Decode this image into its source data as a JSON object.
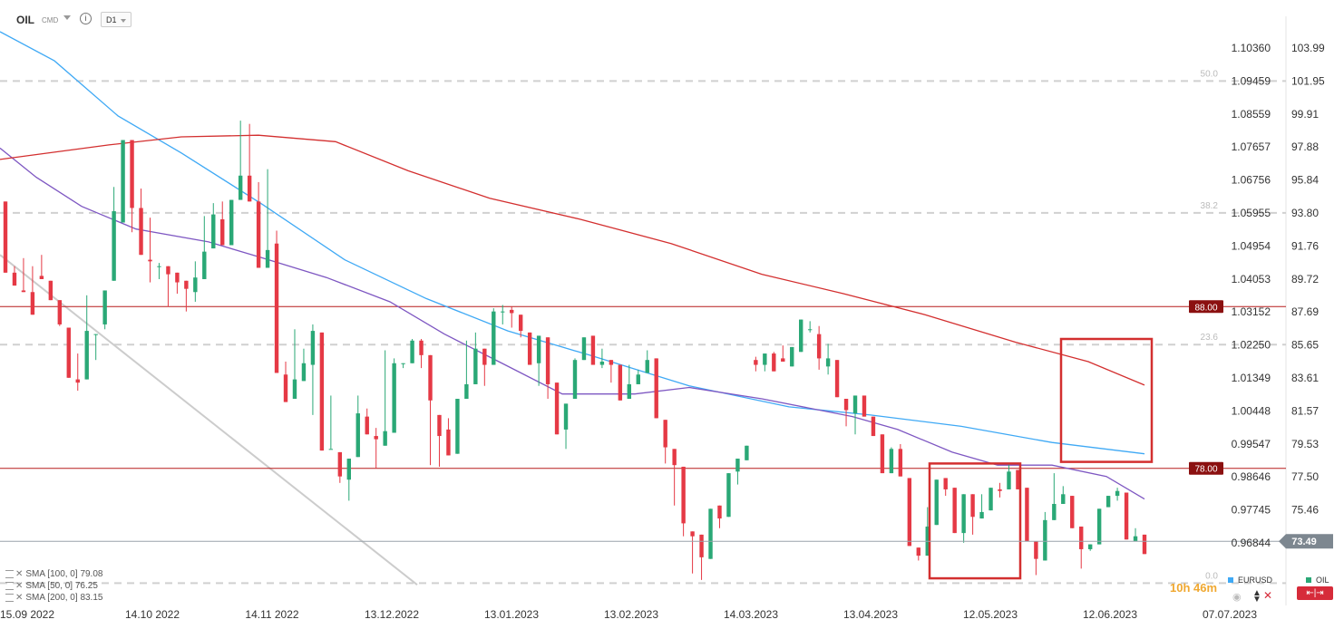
{
  "header": {
    "symbol": "OIL",
    "instrument_type": "CMD",
    "timeframe": "D1"
  },
  "chart_data": {
    "type": "candlestick",
    "instrument": "OIL",
    "interval": "D1",
    "left_axis_label": "EURUSD",
    "right_axis_label": "OIL",
    "x_ticks": [
      "15.09 2022",
      "14.10 2022",
      "14.11 2022",
      "13.12.2022",
      "13.01.2023",
      "13.02.2023",
      "14.03.2023",
      "13.04.2023",
      "12.05.2023",
      "12.06.2023",
      "07.07.2023"
    ],
    "eurusd_ticks": [
      "1.10360",
      "1.09459",
      "1.08559",
      "1.07657",
      "1.06756",
      "1.05955",
      "1.04954",
      "1.04053",
      "1.03152",
      "1.02250",
      "1.01349",
      "1.00448",
      "0.99547",
      "0.98646",
      "0.97745",
      "0.96844"
    ],
    "oil_ticks": [
      "103.99",
      "101.95",
      "99.91",
      "97.88",
      "95.84",
      "93.80",
      "91.76",
      "89.72",
      "87.69",
      "85.65",
      "83.61",
      "81.57",
      "79.53",
      "77.50",
      "75.46"
    ],
    "current_price": 73.49,
    "horizontal_levels": [
      {
        "value": 88.0,
        "label": "88.00",
        "color": "#b71c1c"
      },
      {
        "value": 78.0,
        "label": "78.00",
        "color": "#b71c1c"
      }
    ],
    "fibonacci_levels": [
      {
        "label": "50.0",
        "value": 101.95
      },
      {
        "label": "38.2",
        "value": 93.8
      },
      {
        "label": "23.6",
        "value": 85.65
      },
      {
        "label": "0.0",
        "value": 70.9
      }
    ],
    "moving_averages": [
      {
        "name": "SMA [100, 0]",
        "value": 79.08,
        "color": "#3fa9f5",
        "values": [
          [
            0,
            105.0
          ],
          [
            60,
            103.2
          ],
          [
            130,
            99.8
          ],
          [
            200,
            97.5
          ],
          [
            290,
            94.3
          ],
          [
            380,
            90.9
          ],
          [
            470,
            88.5
          ],
          [
            560,
            86.5
          ],
          [
            650,
            85.0
          ],
          [
            760,
            83.1
          ],
          [
            870,
            81.8
          ],
          [
            960,
            81.3
          ],
          [
            1060,
            80.6
          ],
          [
            1160,
            79.6
          ],
          [
            1262,
            78.9
          ]
        ]
      },
      {
        "name": "SMA [50, 0]",
        "value": 76.25,
        "color": "#7e57c2",
        "values": [
          [
            0,
            97.8
          ],
          [
            40,
            96.0
          ],
          [
            90,
            94.2
          ],
          [
            150,
            92.8
          ],
          [
            230,
            92.0
          ],
          [
            290,
            91.0
          ],
          [
            360,
            89.8
          ],
          [
            430,
            88.3
          ],
          [
            490,
            86.3
          ],
          [
            550,
            84.6
          ],
          [
            620,
            82.6
          ],
          [
            700,
            82.6
          ],
          [
            760,
            83.0
          ],
          [
            840,
            82.3
          ],
          [
            940,
            81.2
          ],
          [
            990,
            80.4
          ],
          [
            1050,
            79.0
          ],
          [
            1100,
            78.2
          ],
          [
            1160,
            78.2
          ],
          [
            1220,
            77.5
          ],
          [
            1262,
            76.1
          ]
        ]
      },
      {
        "name": "SMA [200, 0]",
        "value": 83.15,
        "color": "#d32f2f",
        "values": [
          [
            0,
            97.1
          ],
          [
            120,
            98.0
          ],
          [
            200,
            98.5
          ],
          [
            285,
            98.6
          ],
          [
            370,
            98.2
          ],
          [
            450,
            96.4
          ],
          [
            540,
            94.7
          ],
          [
            640,
            93.4
          ],
          [
            740,
            91.9
          ],
          [
            840,
            90.0
          ],
          [
            930,
            88.8
          ],
          [
            1020,
            87.5
          ],
          [
            1120,
            85.8
          ],
          [
            1200,
            84.6
          ],
          [
            1262,
            83.15
          ]
        ]
      }
    ],
    "highlight_boxes": [
      {
        "x_from": 1025,
        "x_to": 1125,
        "y_high": 78.3,
        "y_low": 71.2,
        "color": "#d32f2f"
      },
      {
        "x_from": 1170,
        "x_to": 1270,
        "y_high": 86.0,
        "y_low": 78.4,
        "color": "#d32f2f"
      }
    ],
    "trendline": {
      "points": [
        [
          0,
          91.2
        ],
        [
          460,
          70.8
        ]
      ],
      "color": "#cccccc"
    },
    "candles": [
      [
        94.5,
        93.3,
        92.0,
        90.1
      ],
      [
        90.1,
        90.5,
        89.9,
        89.3
      ],
      [
        89.0,
        91.0,
        89.9,
        88.9
      ],
      [
        88.9,
        90.5,
        89.8,
        87.5
      ],
      [
        89.9,
        91.2,
        90.2,
        89.7
      ],
      [
        89.6,
        88.6,
        89.6,
        88.4
      ],
      [
        88.4,
        86.8,
        87.5,
        86.9
      ],
      [
        86.7,
        83.6,
        86.2,
        83.6
      ],
      [
        83.5,
        82.8,
        85.1,
        83.3
      ],
      [
        83.5,
        88.7,
        86.4,
        86.5
      ],
      [
        86.3,
        84.7,
        86.2,
        86.3
      ],
      [
        86.9,
        86.6,
        88.7,
        89.0
      ],
      [
        89.6,
        95.4,
        90.6,
        93.9
      ],
      [
        93.2,
        98.1,
        97.2,
        98.3
      ],
      [
        98.3,
        92.6,
        97.4,
        94.1
      ],
      [
        94.1,
        92.3,
        95.3,
        91.2
      ],
      [
        90.9,
        89.5,
        93.5,
        90.8
      ],
      [
        90.5,
        89.7,
        90.7,
        90.5
      ],
      [
        90.5,
        88.0,
        90.3,
        90.0
      ],
      [
        90.1,
        88.8,
        90.0,
        89.5
      ],
      [
        89.6,
        87.7,
        89.1,
        89.1
      ],
      [
        88.9,
        88.3,
        90.8,
        89.8
      ],
      [
        89.7,
        93.6,
        91.1,
        91.4
      ],
      [
        91.6,
        94.4,
        93.8,
        93.7
      ],
      [
        93.4,
        94.5,
        93.2,
        91.8
      ],
      [
        91.8,
        94.1,
        92.5,
        94.6
      ],
      [
        94.6,
        99.5,
        95.0,
        96.1
      ],
      [
        96.1,
        97.0,
        99.3,
        94.5
      ],
      [
        94.5,
        95.7,
        92.8,
        90.4
      ],
      [
        90.4,
        96.5,
        90.8,
        91.5
      ],
      [
        91.9,
        92.7,
        90.1,
        83.9
      ],
      [
        83.8,
        84.1,
        84.6,
        82.1
      ],
      [
        82.3,
        86.6,
        84.4,
        83.5
      ],
      [
        83.4,
        84.0,
        85.4,
        84.5
      ],
      [
        84.4,
        81.3,
        86.9,
        86.5
      ],
      [
        86.4,
        83.8,
        83.5,
        79.1
      ],
      [
        79.2,
        82.5,
        82.3,
        79.2
      ],
      [
        79.0,
        77.1,
        78.5,
        77.5
      ],
      [
        77.3,
        76.0,
        78.4,
        78.6
      ],
      [
        78.7,
        82.5,
        81.6,
        81.4
      ],
      [
        81.2,
        80.4,
        81.7,
        80.1
      ],
      [
        80.0,
        78.0,
        80.5,
        79.8
      ],
      [
        79.4,
        85.3,
        83.0,
        80.3
      ],
      [
        80.2,
        82.6,
        84.8,
        84.5
      ],
      [
        84.5,
        84.2,
        84.4,
        84.5
      ],
      [
        84.5,
        85.1,
        86.0,
        85.9
      ],
      [
        85.9,
        84.2,
        86.0,
        85.0
      ],
      [
        85.0,
        78.2,
        82.3,
        82.2
      ],
      [
        81.3,
        79.3,
        78.1,
        80.0
      ],
      [
        80.4,
        80.6,
        81.1,
        78.8
      ],
      [
        78.9,
        81.9,
        82.3,
        82.3
      ],
      [
        82.3,
        83.0,
        85.9,
        83.2
      ],
      [
        83.2,
        86.4,
        85.0,
        85.4
      ],
      [
        85.4,
        83.1,
        84.9,
        84.4
      ],
      [
        84.4,
        87.9,
        86.9,
        87.7
      ],
      [
        87.7,
        86.9,
        88.1,
        87.7
      ],
      [
        87.8,
        86.7,
        88.0,
        87.6
      ],
      [
        87.5,
        86.1,
        87.1,
        86.5
      ],
      [
        86.4,
        85.8,
        84.9,
        84.4
      ],
      [
        84.5,
        83.1,
        85.9,
        86.2
      ],
      [
        86.1,
        82.3,
        83.5,
        83.2
      ],
      [
        83.3,
        81.3,
        82.2,
        80.1
      ],
      [
        80.4,
        79.2,
        80.3,
        82.0
      ],
      [
        82.3,
        84.8,
        84.8,
        84.7
      ],
      [
        84.7,
        84.9,
        85.3,
        86.1
      ],
      [
        86.2,
        84.6,
        85.7,
        84.4
      ],
      [
        84.4,
        85.4,
        84.2,
        84.6
      ],
      [
        84.7,
        83.3,
        84.7,
        84.4
      ],
      [
        84.4,
        83.3,
        82.9,
        82.2
      ],
      [
        82.3,
        84.4,
        83.7,
        83.2
      ],
      [
        83.2,
        83.5,
        84.1,
        83.8
      ],
      [
        83.9,
        84.5,
        85.3,
        84.7
      ],
      [
        84.8,
        81.8,
        81.6,
        81.1
      ],
      [
        81.0,
        80.2,
        78.3,
        79.3
      ],
      [
        79.2,
        75.7,
        76.5,
        78.2
      ],
      [
        78.1,
        73.8,
        74.0,
        74.6
      ],
      [
        74.1,
        71.5,
        72.9,
        73.8
      ],
      [
        73.9,
        71.1,
        73.0,
        72.5
      ],
      [
        72.4,
        74.0,
        74.3,
        75.5
      ],
      [
        75.7,
        75.2,
        74.3,
        74.9
      ],
      [
        75.0,
        77.7,
        76.7,
        77.7
      ],
      [
        77.8,
        77.0,
        77.2,
        78.6
      ],
      [
        78.5,
        78.5,
        79.3,
        79.4
      ],
      [
        84.7,
        84.0,
        84.9,
        84.4
      ],
      [
        84.4,
        84.0,
        84.8,
        85.1
      ],
      [
        85.1,
        85.2,
        84.8,
        84.0
      ],
      [
        84.8,
        85.6,
        85.2,
        84.6
      ],
      [
        84.3,
        85.3,
        85.5,
        85.5
      ],
      [
        85.2,
        86.8,
        87.1,
        87.2
      ],
      [
        86.6,
        87.1,
        86.4,
        86.6
      ],
      [
        86.3,
        86.8,
        84.1,
        84.8
      ],
      [
        84.3,
        83.8,
        85.7,
        84.8
      ],
      [
        84.7,
        84.2,
        83.2,
        82.4
      ],
      [
        82.3,
        80.6,
        81.1,
        81.6
      ],
      [
        81.4,
        80.1,
        81.3,
        82.5
      ],
      [
        82.5,
        82.3,
        81.2,
        81.2
      ],
      [
        81.2,
        80.0,
        80.1,
        80.0
      ],
      [
        80.1,
        77.8,
        78.8,
        77.7
      ],
      [
        77.7,
        78.4,
        79.3,
        79.2
      ],
      [
        79.2,
        79.5,
        78.8,
        77.5
      ],
      [
        77.4,
        76.7,
        75.4,
        73.2
      ],
      [
        73.1,
        72.3,
        72.5,
        72.6
      ],
      [
        72.6,
        74.7,
        75.6,
        74.4
      ],
      [
        74.5,
        76.5,
        76.3,
        77.3
      ],
      [
        77.4,
        76.3,
        77.1,
        76.7
      ],
      [
        76.8,
        74.0,
        76.7,
        74.0
      ],
      [
        74.0,
        73.4,
        75.2,
        76.4
      ],
      [
        76.4,
        73.9,
        74.1,
        75.0
      ],
      [
        74.9,
        76.4,
        75.2,
        75.3
      ],
      [
        75.4,
        75.9,
        76.1,
        76.8
      ],
      [
        76.7,
        76.2,
        77.1,
        76.6
      ],
      [
        76.7,
        77.3,
        78.3,
        77.8
      ],
      [
        77.9,
        76.7,
        77.3,
        76.7
      ],
      [
        76.8,
        76.2,
        75.3,
        73.5
      ],
      [
        73.5,
        72.3,
        71.4,
        72.4
      ],
      [
        72.3,
        75.3,
        74.3,
        74.8
      ],
      [
        74.8,
        77.7,
        76.2,
        75.8
      ],
      [
        75.8,
        76.6,
        76.9,
        76.4
      ],
      [
        76.3,
        75.6,
        75.3,
        74.3
      ],
      [
        74.4,
        73.6,
        71.8,
        73.0
      ],
      [
        73.0,
        72.9,
        73.0,
        73.3
      ],
      [
        73.3,
        74.7,
        75.5,
        75.5
      ],
      [
        75.6,
        76.1,
        76.2,
        76.3
      ],
      [
        76.3,
        76.0,
        76.8,
        76.6
      ],
      [
        76.5,
        76.2,
        74.8,
        73.6
      ],
      [
        73.5,
        74.1,
        74.3,
        73.8
      ],
      [
        73.9,
        73.9,
        72.8,
        72.7
      ]
    ]
  },
  "indicators_legend": [
    {
      "label": "SMA [100, 0]",
      "value": "79.08"
    },
    {
      "label": "SMA [50, 0]",
      "value": "76.25"
    },
    {
      "label": "SMA [200, 0]",
      "value": "83.15"
    }
  ],
  "footer": {
    "timer": "10h 46m",
    "legend_left": "EURUSD",
    "legend_right": "OIL"
  }
}
